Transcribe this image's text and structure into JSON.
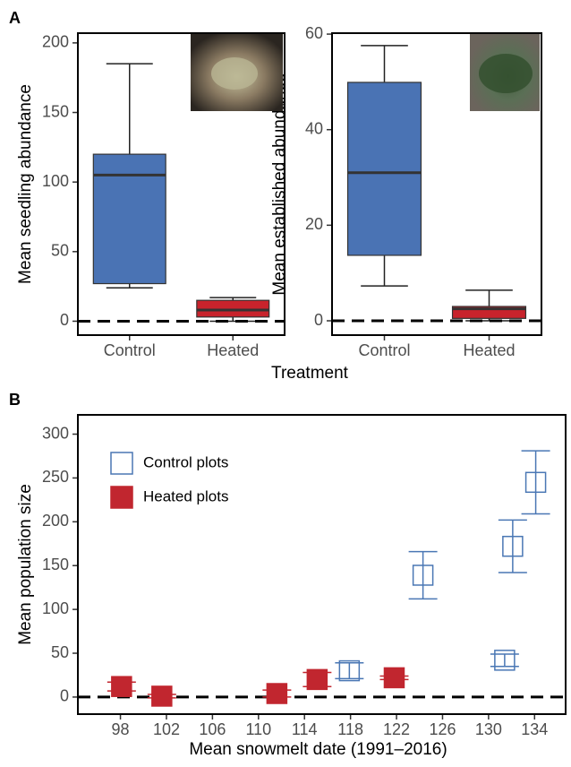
{
  "chart_data": [
    {
      "type": "box",
      "panel": "A",
      "ylabel": "Mean seedling abundance",
      "xlabel": "Treatment",
      "categories": [
        "Control",
        "Heated"
      ],
      "colors": [
        "#4a73b4",
        "#c8232c"
      ],
      "whisker_low": [
        24,
        0
      ],
      "q1": [
        27,
        3
      ],
      "median": [
        105,
        8
      ],
      "q3": [
        120,
        15
      ],
      "whisker_high": [
        185,
        17
      ],
      "ylim": [
        -10,
        207
      ],
      "yticks": [
        0,
        50,
        100,
        150,
        200
      ],
      "reference_line": 0
    },
    {
      "type": "box",
      "ylabel": "Mean established abundance",
      "categories": [
        "Control",
        "Heated"
      ],
      "colors": [
        "#4a73b4",
        "#c8232c"
      ],
      "whisker_low": [
        7.3,
        0
      ],
      "q1": [
        13.7,
        0.5
      ],
      "median": [
        31,
        2.5
      ],
      "q3": [
        49.9,
        3
      ],
      "whisker_high": [
        57.6,
        6.4
      ],
      "ylim": [
        -3,
        60.2
      ],
      "yticks": [
        0,
        20,
        40,
        60
      ],
      "reference_line": 0
    },
    {
      "type": "scatter",
      "panel": "B",
      "xlabel": "Mean snowmelt date (1991–2016)",
      "ylabel": "Mean population size",
      "series": [
        {
          "name": "Control plots",
          "color": "#4a77b4",
          "marker": "open-square",
          "x": [
            117.9,
            124.3,
            131.4,
            132.1,
            134.1
          ],
          "values": [
            30,
            139,
            42,
            172,
            245
          ],
          "error": [
            9,
            27,
            7,
            30,
            36
          ]
        },
        {
          "name": "Heated plots",
          "color": "#c1262f",
          "marker": "filled-square",
          "x": [
            98.1,
            101.6,
            111.6,
            115.1,
            121.8
          ],
          "values": [
            12,
            1,
            4,
            20,
            22
          ],
          "error": [
            5,
            2,
            4,
            8,
            2
          ]
        }
      ],
      "xlim": [
        94.3,
        136.7
      ],
      "xticks": [
        98,
        102,
        106,
        110,
        114,
        118,
        122,
        126,
        130,
        134
      ],
      "ylim": [
        -19.5,
        322
      ],
      "yticks": [
        0,
        50,
        100,
        150,
        200,
        250,
        300
      ],
      "reference_line": 0,
      "legend": "upper left"
    }
  ]
}
